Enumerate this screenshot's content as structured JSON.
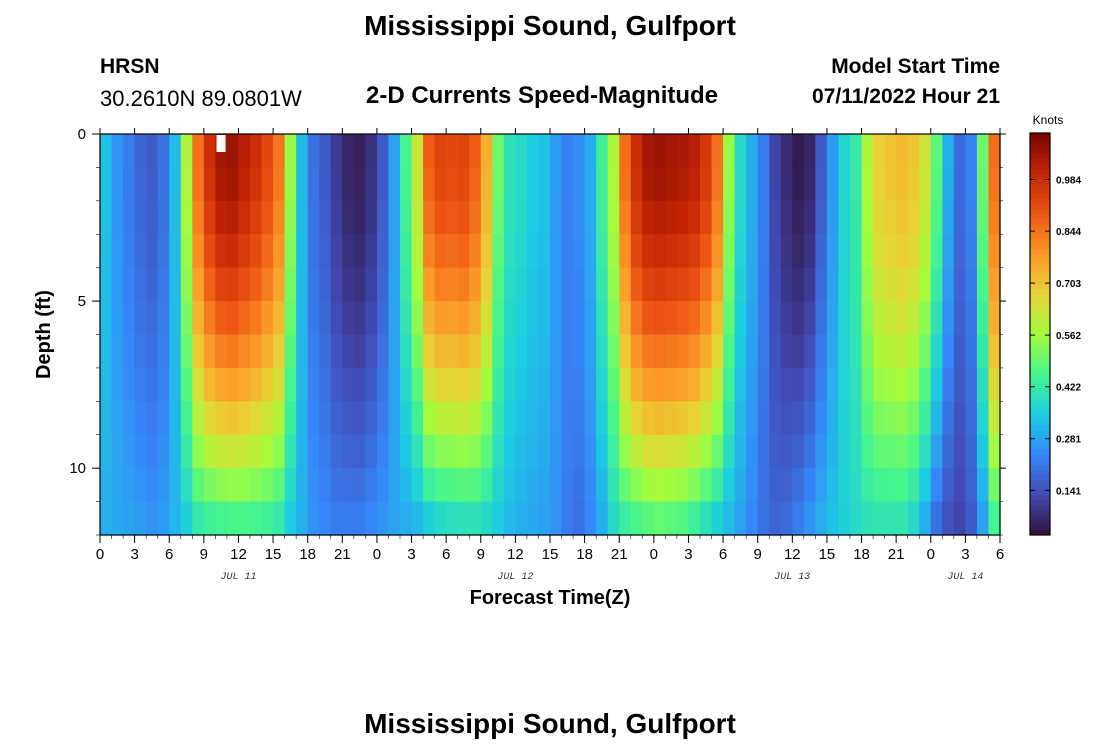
{
  "page": {
    "title": "Mississippi Sound, Gulfport",
    "footer_title": "Mississippi Sound, Gulfport",
    "station": {
      "code": "HRSN",
      "coords": "30.2610N  89.0801W"
    },
    "plot_title": "2-D Currents Speed-Magnitude",
    "model": {
      "label": "Model Start Time",
      "value": "07/11/2022 Hour 21"
    }
  },
  "chart_data": {
    "type": "heatmap",
    "title": "2-D Currents Speed-Magnitude",
    "xlabel": "Forecast Time(Z)",
    "ylabel": "Depth (ft)",
    "x_unit": "hours since 2022-07-11 00Z",
    "x_range": [
      0,
      78
    ],
    "y_range": [
      0,
      12
    ],
    "y_inverted": true,
    "x_tick_values": [
      0,
      3,
      6,
      9,
      12,
      15,
      18,
      21,
      24,
      27,
      30,
      33,
      36,
      39,
      42,
      45,
      48,
      51,
      54,
      57,
      60,
      63,
      66,
      69,
      72,
      75,
      78
    ],
    "x_tick_labels": [
      "0",
      "3",
      "6",
      "9",
      "12",
      "15",
      "18",
      "21",
      "0",
      "3",
      "6",
      "9",
      "12",
      "15",
      "18",
      "21",
      "0",
      "3",
      "6",
      "9",
      "12",
      "15",
      "18",
      "21",
      "0",
      "3",
      "6"
    ],
    "day_labels": [
      {
        "text": "JUL 11",
        "x": 12
      },
      {
        "text": "JUL 12",
        "x": 36
      },
      {
        "text": "JUL 13",
        "x": 60
      },
      {
        "text": "JUL 14",
        "x": 75
      }
    ],
    "y_tick_values": [
      0,
      5,
      10
    ],
    "y_tick_labels": [
      "0",
      "5",
      "10"
    ],
    "x_points": [
      0,
      1,
      2,
      3,
      4,
      5,
      6,
      7,
      8,
      9,
      10,
      11,
      12,
      13,
      14,
      15,
      16,
      17,
      18,
      19,
      20,
      21,
      22,
      23,
      24,
      25,
      26,
      27,
      28,
      29,
      30,
      31,
      32,
      33,
      34,
      35,
      36,
      37,
      38,
      39,
      40,
      41,
      42,
      43,
      44,
      45,
      46,
      47,
      48,
      49,
      50,
      51,
      52,
      53,
      54,
      55,
      56,
      57,
      58,
      59,
      60,
      61,
      62,
      63,
      64,
      65,
      66,
      67,
      68,
      69,
      70,
      71,
      72,
      73,
      74,
      75,
      76,
      77
    ],
    "depth_levels": [
      0.5,
      1.5,
      2.5,
      3.5,
      4.5,
      5.5,
      6.5,
      7.5,
      8.5,
      9.5,
      10.5,
      11.5
    ],
    "surface_speed": [
      0.33,
      0.26,
      0.22,
      0.18,
      0.16,
      0.2,
      0.32,
      0.58,
      0.85,
      0.98,
      1.05,
      1.06,
      1.02,
      0.98,
      0.92,
      0.84,
      0.55,
      0.32,
      0.2,
      0.16,
      0.1,
      0.06,
      0.05,
      0.08,
      0.16,
      0.28,
      0.45,
      0.62,
      0.88,
      0.93,
      0.92,
      0.93,
      0.88,
      0.74,
      0.5,
      0.4,
      0.38,
      0.35,
      0.33,
      0.27,
      0.23,
      0.25,
      0.3,
      0.44,
      0.58,
      0.85,
      0.99,
      1.05,
      1.06,
      1.05,
      1.04,
      1.02,
      0.96,
      0.85,
      0.55,
      0.38,
      0.3,
      0.22,
      0.12,
      0.07,
      0.04,
      0.06,
      0.16,
      0.27,
      0.37,
      0.42,
      0.58,
      0.68,
      0.7,
      0.72,
      0.7,
      0.63,
      0.48,
      0.3,
      0.19,
      0.23,
      0.5,
      0.85
    ],
    "bottom_speed": [
      0.3,
      0.29,
      0.28,
      0.27,
      0.26,
      0.27,
      0.31,
      0.36,
      0.42,
      0.44,
      0.45,
      0.46,
      0.46,
      0.45,
      0.44,
      0.42,
      0.35,
      0.3,
      0.26,
      0.24,
      0.22,
      0.22,
      0.22,
      0.24,
      0.26,
      0.28,
      0.3,
      0.32,
      0.36,
      0.38,
      0.39,
      0.4,
      0.4,
      0.38,
      0.35,
      0.32,
      0.3,
      0.29,
      0.28,
      0.26,
      0.22,
      0.2,
      0.24,
      0.3,
      0.38,
      0.43,
      0.46,
      0.48,
      0.49,
      0.48,
      0.47,
      0.44,
      0.4,
      0.36,
      0.32,
      0.28,
      0.24,
      0.2,
      0.18,
      0.19,
      0.22,
      0.26,
      0.3,
      0.33,
      0.36,
      0.38,
      0.4,
      0.41,
      0.41,
      0.41,
      0.38,
      0.3,
      0.2,
      0.14,
      0.12,
      0.16,
      0.28,
      0.45
    ],
    "colorbar": {
      "unit": "Knots",
      "tick_values": [
        0.141,
        0.281,
        0.422,
        0.562,
        0.703,
        0.844,
        0.984
      ],
      "tick_labels": [
        "0.141",
        "0.281",
        "0.422",
        "0.562",
        "0.703",
        "0.844",
        "0.984"
      ],
      "range": [
        0.02,
        1.11
      ]
    }
  },
  "colors": {
    "frame": "#000000",
    "background": "#ffffff"
  }
}
